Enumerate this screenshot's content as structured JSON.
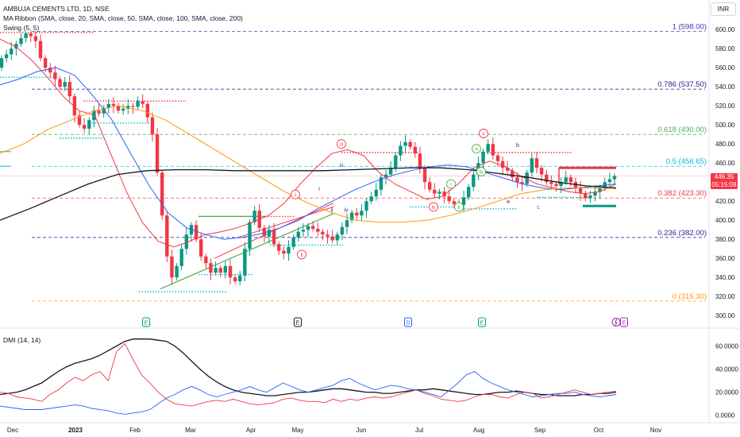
{
  "header": {
    "title": "AMBUJA CEMENTS LTD, 1D, NSE",
    "ma_ribbon": "MA Ribbon (SMA, close, 20, SMA, close, 50, SMA, close, 100, SMA, close, 200)",
    "swing": "Swing (5, 5)",
    "currency": "INR"
  },
  "last_price": {
    "value": "446.35",
    "countdown": "05:15:08"
  },
  "chart_data": [
    {
      "type": "candlestick",
      "title": "AMBUJA CEMENTS LTD, 1D, NSE",
      "y_axis": {
        "side": "right",
        "ylim": [
          296,
          606
        ],
        "ticks": [
          300,
          320,
          340,
          360,
          380,
          400,
          420,
          440,
          460,
          480,
          500,
          520,
          540,
          560,
          580,
          600
        ],
        "tick_labels": [
          "300.00",
          "320.00",
          "340.00",
          "360.00",
          "380.00",
          "400.00",
          "420.00",
          "440.00",
          "460.00",
          "480.00",
          "500.00",
          "520.00",
          "540.00",
          "560.00",
          "580.00",
          "600.00"
        ]
      },
      "x_axis": {
        "labels": [
          "Dec",
          "2023",
          "Feb",
          "Mar",
          "Apr",
          "May",
          "Jun",
          "Jul",
          "Aug",
          "Sep",
          "Oct",
          "Nov"
        ],
        "bold_label": "2023",
        "x_dates": [
          "2022-11-25",
          "2023-01-01",
          "2023-02-01",
          "2023-03-01",
          "2023-04-01",
          "2023-05-01",
          "2023-06-01",
          "2023-07-01",
          "2023-08-01",
          "2023-09-01",
          "2023-10-01",
          "2023-11-01"
        ]
      },
      "closes": [
        570,
        574,
        580,
        585,
        591,
        596,
        593,
        588,
        570,
        560,
        555,
        548,
        540,
        545,
        530,
        510,
        500,
        496,
        505,
        515,
        512,
        518,
        522,
        520,
        515,
        517,
        520,
        519,
        525,
        522,
        508,
        490,
        450,
        405,
        362,
        340,
        352,
        370,
        385,
        395,
        380,
        362,
        355,
        345,
        350,
        345,
        352,
        340,
        336,
        342,
        370,
        398,
        410,
        392,
        383,
        390,
        375,
        368,
        365,
        372,
        382,
        388,
        390,
        394,
        391,
        388,
        385,
        383,
        379,
        385,
        393,
        400,
        408,
        405,
        410,
        420,
        425,
        432,
        445,
        448,
        455,
        468,
        478,
        482,
        477,
        470,
        455,
        440,
        432,
        428,
        430,
        425,
        420,
        417,
        416,
        424,
        435,
        448,
        460,
        472,
        480,
        468,
        462,
        455,
        452,
        445,
        440,
        438,
        450,
        465,
        455,
        448,
        440,
        438,
        436,
        440,
        445,
        440,
        434,
        428,
        423,
        426,
        430,
        434,
        440,
        443,
        446.35
      ],
      "candle_stats": {
        "first_open": 560,
        "low_wick_min": 316,
        "high_wick_max": 598
      },
      "moving_averages": [
        {
          "name": "SMA 20",
          "color": "#f23645",
          "values": [
            590,
            582,
            568,
            550,
            530,
            515,
            510,
            470,
            430,
            398,
            378,
            372,
            378,
            385,
            388,
            392,
            398,
            405,
            418,
            438,
            455,
            470,
            474,
            468,
            450,
            438,
            430,
            422,
            425,
            438,
            455,
            462,
            456,
            446,
            438,
            434,
            430,
            428,
            430,
            438
          ]
        },
        {
          "name": "SMA 50",
          "color": "#2962ff",
          "values": [
            542,
            548,
            556,
            560,
            552,
            530,
            505,
            470,
            436,
            408,
            392,
            385,
            380,
            382,
            386,
            392,
            400,
            412,
            422,
            432,
            440,
            447,
            452,
            456,
            458,
            456,
            450,
            444,
            438,
            434,
            432,
            434,
            436,
            438
          ]
        },
        {
          "name": "SMA 100",
          "color": "#ff9800",
          "values": [
            470,
            480,
            495,
            505,
            515,
            520,
            515,
            505,
            490,
            475,
            460,
            445,
            430,
            418,
            408,
            400,
            398,
            398,
            400,
            405,
            412,
            420,
            428,
            432,
            434,
            434,
            433
          ]
        },
        {
          "name": "SMA 200",
          "color": "#131722",
          "values": [
            400,
            412,
            425,
            438,
            448,
            452,
            453,
            453,
            452,
            452,
            452,
            452,
            453,
            454,
            455,
            455,
            453,
            449,
            445,
            440,
            436,
            434
          ]
        }
      ],
      "fibonacci": [
        {
          "ratio": "1",
          "price": 598.0,
          "label": "1 (598.00)",
          "color": "#512da8"
        },
        {
          "ratio": "0.786",
          "price": 537.5,
          "label": "0.786 (537.50)",
          "color": "#311b92"
        },
        {
          "ratio": "0.618",
          "price": 490.0,
          "label": "0.618 (490.00)",
          "color": "#4caf50"
        },
        {
          "ratio": "0.5",
          "price": 456.65,
          "label": "0.5 (456.65)",
          "color": "#00bcd4"
        },
        {
          "ratio": "0.382",
          "price": 423.3,
          "label": "0.382 (423.30)",
          "color": "#f23645"
        },
        {
          "ratio": "0.236",
          "price": 382.0,
          "label": "0.236 (382.00)",
          "color": "#311b92"
        },
        {
          "ratio": "0",
          "price": 315.3,
          "label": "0 (315.30)",
          "color": "#ff9800"
        }
      ],
      "wave_labels": [
        {
          "text": "i",
          "price": 427,
          "style": "circle",
          "color": "#f23645"
        },
        {
          "text": "ii",
          "price": 364,
          "style": "circle",
          "color": "#f23645"
        },
        {
          "text": "iii",
          "price": 480,
          "style": "circle",
          "color": "#f23645"
        },
        {
          "text": "iv",
          "price": 414,
          "style": "circle",
          "color": "#f23645"
        },
        {
          "text": "v",
          "price": 491,
          "style": "circle",
          "color": "#f23645"
        },
        {
          "text": "i",
          "price": 433,
          "style": "plain",
          "color": "#311b92"
        },
        {
          "text": "ii",
          "price": 411,
          "style": "plain",
          "color": "#311b92"
        },
        {
          "text": "iii",
          "price": 458,
          "style": "plain",
          "color": "#311b92"
        },
        {
          "text": "iv",
          "price": 411,
          "style": "plain",
          "color": "#311b92"
        },
        {
          "text": "i",
          "price": 438,
          "style": "circle",
          "color": "#4caf50"
        },
        {
          "text": "ii",
          "price": 414,
          "style": "circle",
          "color": "#4caf50"
        },
        {
          "text": "iii",
          "price": 475,
          "style": "circle",
          "color": "#4caf50"
        },
        {
          "text": "iv",
          "price": 451,
          "style": "circle",
          "color": "#4caf50"
        },
        {
          "text": "a",
          "price": 420,
          "style": "plain",
          "color": "#311b92"
        },
        {
          "text": "b",
          "price": 479,
          "style": "plain",
          "color": "#311b92"
        },
        {
          "text": "c",
          "price": 414,
          "style": "plain",
          "color": "#2962ff"
        }
      ],
      "event_markers": [
        "E",
        "E",
        "D",
        "E",
        "E"
      ]
    },
    {
      "type": "line",
      "title": "DMI (14, 14)",
      "y_axis": {
        "side": "right",
        "ylim": [
          -5,
          72
        ],
        "ticks": [
          0,
          20,
          40,
          60
        ],
        "tick_labels": [
          "0.0000",
          "20.0000",
          "40.0000",
          "60.0000"
        ]
      },
      "series": [
        {
          "color": "#131722",
          "values": [
            18,
            19,
            20,
            22,
            25,
            28,
            33,
            38,
            42,
            45,
            47,
            49,
            52,
            56,
            60,
            64,
            66,
            66,
            66,
            65,
            64,
            60,
            54,
            47,
            40,
            34,
            29,
            25,
            22,
            20,
            19,
            18,
            17,
            17,
            18,
            19,
            20,
            20,
            21,
            22,
            23,
            23,
            22,
            21,
            20,
            20,
            19,
            19,
            20,
            21,
            22,
            22,
            23,
            22,
            21,
            20,
            19,
            18,
            18,
            19,
            20,
            20,
            21,
            20,
            19,
            18,
            18,
            17,
            17,
            17,
            18,
            18,
            19,
            19,
            20
          ]
        },
        {
          "color": "#f23645",
          "values": [
            20,
            19,
            16,
            15,
            14,
            12,
            18,
            22,
            28,
            33,
            30,
            35,
            38,
            30,
            55,
            62,
            48,
            35,
            28,
            20,
            14,
            10,
            9,
            8,
            10,
            12,
            13,
            12,
            14,
            12,
            10,
            9,
            10,
            11,
            14,
            15,
            13,
            12,
            12,
            11,
            14,
            12,
            14,
            13,
            15,
            16,
            15,
            16,
            18,
            20,
            22,
            19,
            17,
            14,
            13,
            12,
            13,
            16,
            18,
            18,
            16,
            15,
            18,
            20,
            19,
            15,
            16,
            18,
            20,
            22,
            20,
            18,
            19,
            20,
            21
          ]
        },
        {
          "color": "#2962ff",
          "values": [
            8,
            7,
            6,
            5,
            5,
            5,
            6,
            7,
            8,
            9,
            8,
            6,
            5,
            4,
            2,
            1,
            2,
            3,
            5,
            10,
            15,
            18,
            22,
            25,
            22,
            18,
            16,
            18,
            20,
            22,
            25,
            22,
            20,
            24,
            28,
            25,
            22,
            20,
            22,
            24,
            26,
            30,
            32,
            28,
            25,
            22,
            24,
            26,
            25,
            23,
            22,
            20,
            18,
            16,
            22,
            28,
            35,
            38,
            32,
            28,
            25,
            22,
            20,
            18,
            16,
            17,
            18,
            19,
            19,
            20,
            18,
            17,
            16,
            17,
            18
          ]
        }
      ]
    }
  ]
}
